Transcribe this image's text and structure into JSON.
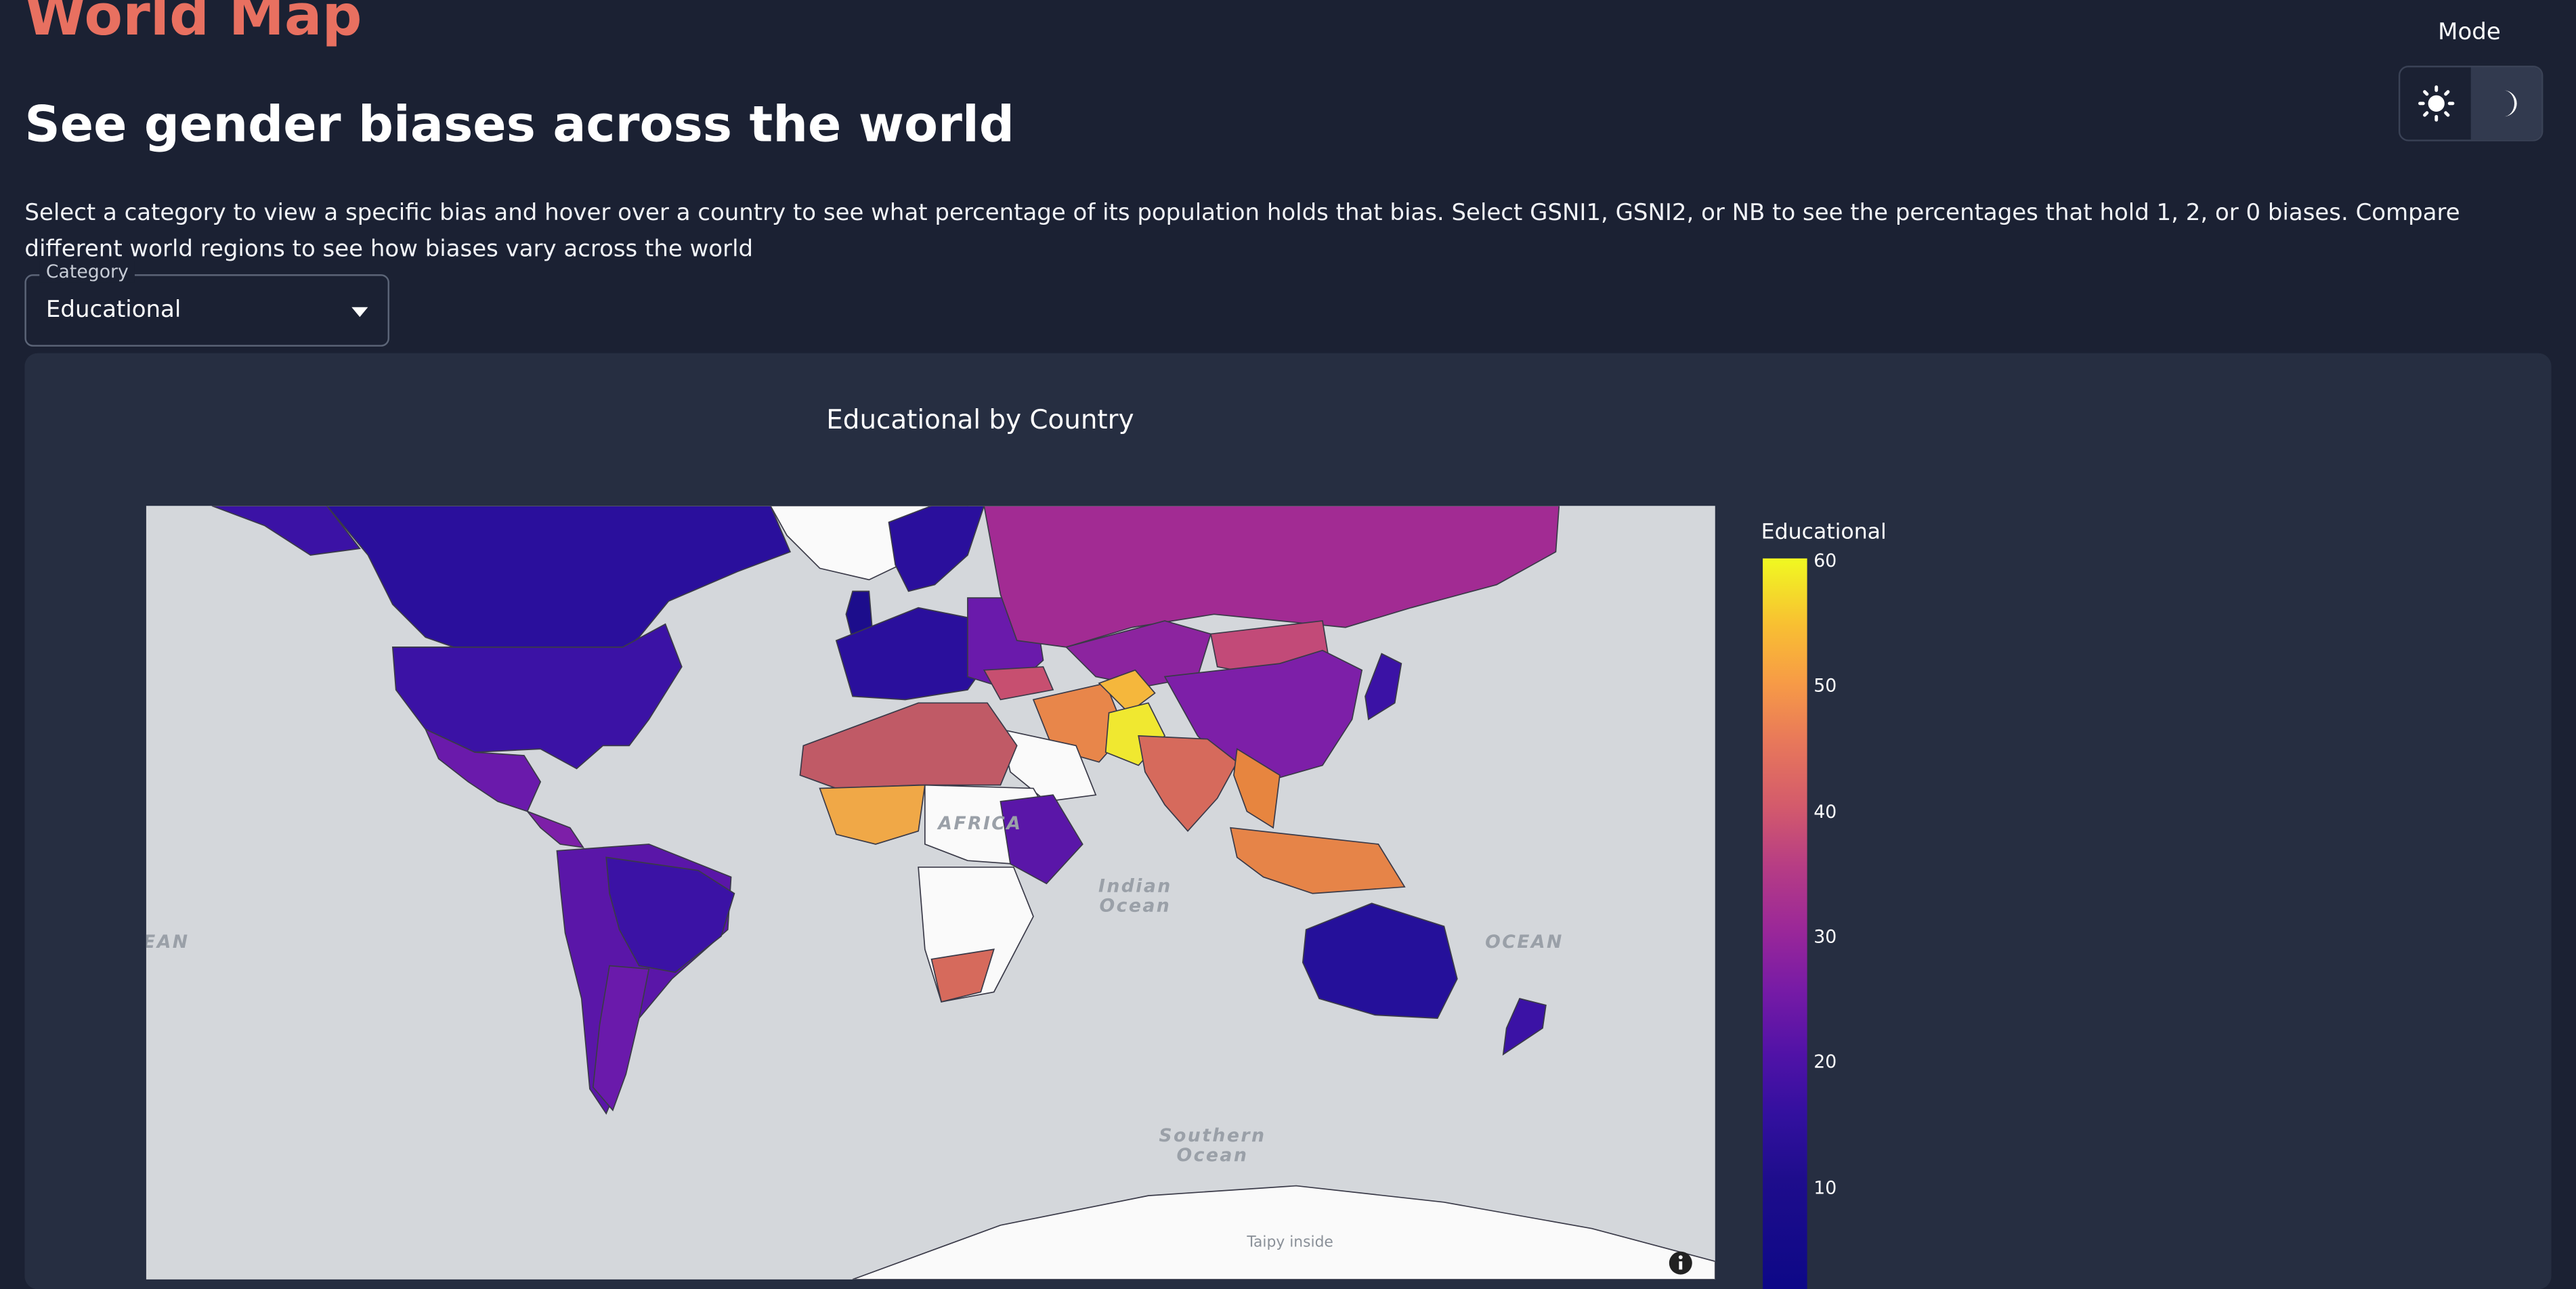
{
  "app": {
    "title": "World Map",
    "heading": "See gender biases across the world",
    "description": "Select a category to view a specific bias and hover over a country to see what percentage of its population holds that bias. Select GSNI1, GSNI2, or NB to see the percentages that hold 1, 2, or 0 biases. Compare different world regions to see how biases vary across the world"
  },
  "mode": {
    "label": "Mode",
    "options": [
      "light",
      "dark"
    ],
    "selected": "dark",
    "light_icon": "sun-icon",
    "dark_icon": "moon-icon"
  },
  "category": {
    "legend": "Category",
    "value": "Educational"
  },
  "map": {
    "title": "Educational by Country",
    "ocean_labels": [
      "EAN",
      "Indian Ocean",
      "AFRICA",
      "OCEAN",
      "Southern Ocean"
    ],
    "attribution": "Taipy inside",
    "colorbar": {
      "title": "Educational",
      "ticks": [
        "60",
        "50",
        "40",
        "30",
        "20",
        "10"
      ],
      "range": [
        5,
        60
      ],
      "colorscale": "plasma"
    }
  }
}
